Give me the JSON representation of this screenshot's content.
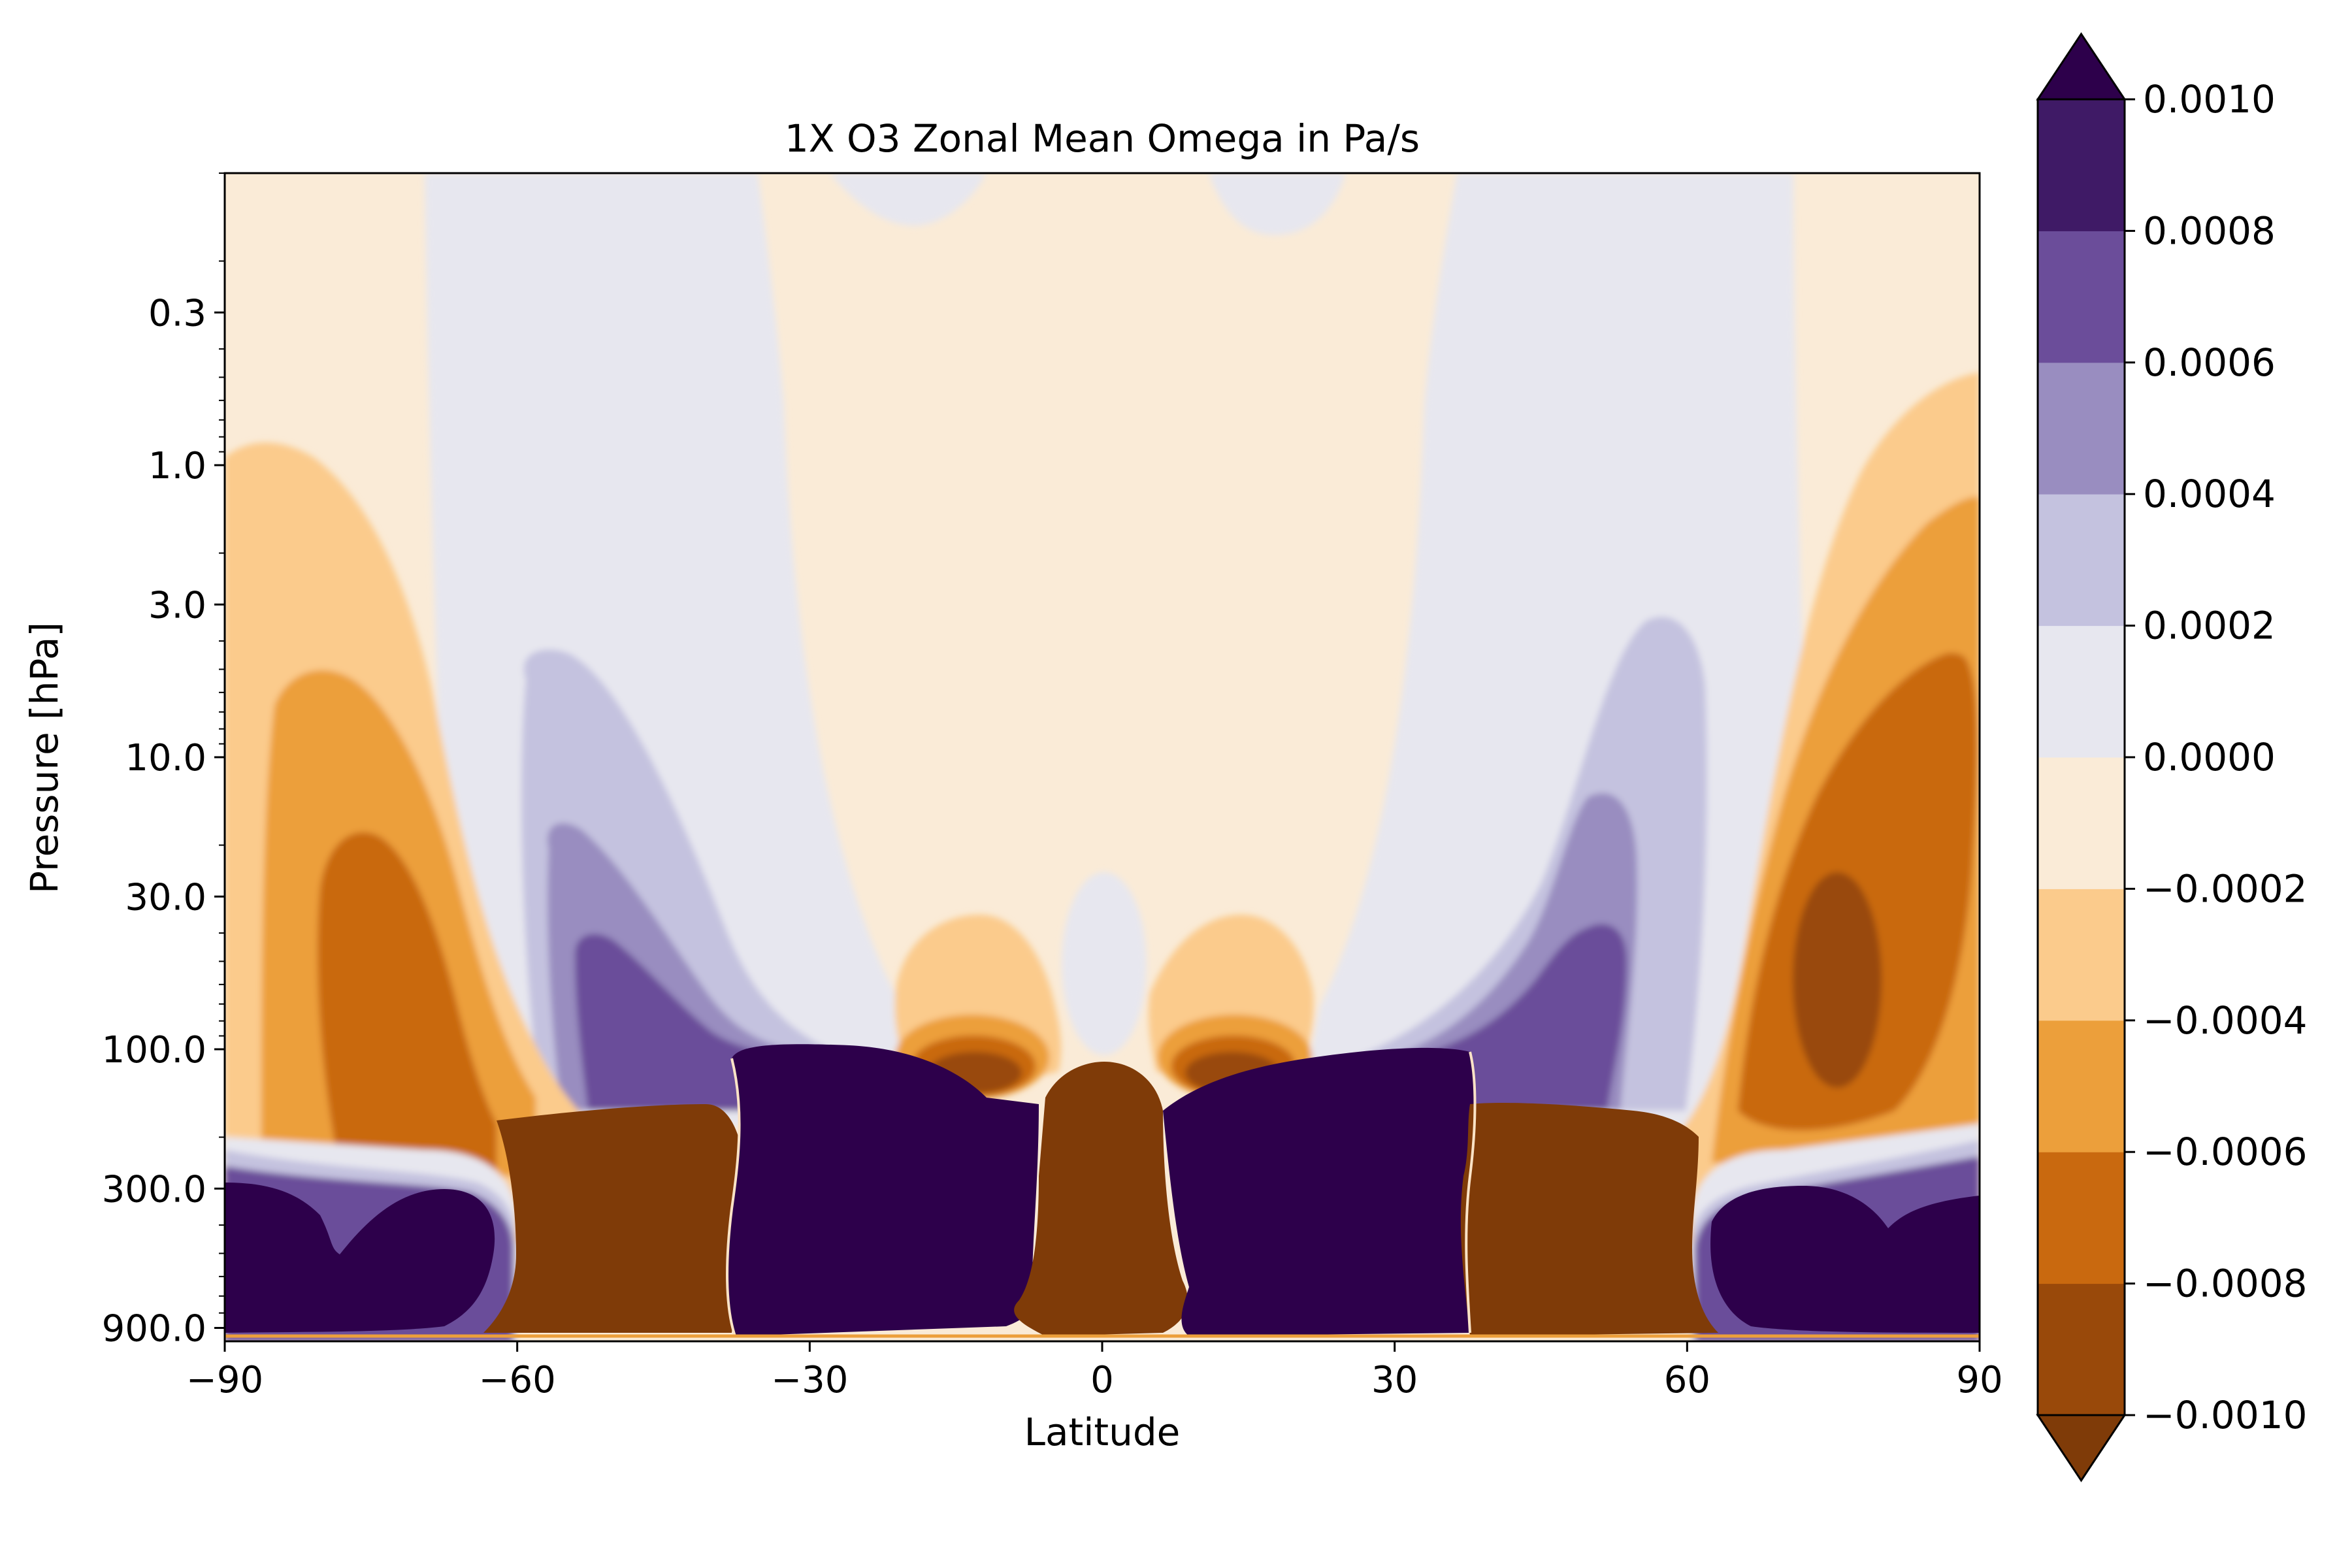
{
  "chart_data": {
    "type": "contourf",
    "title": "1X O3 Zonal Mean Omega in Pa/s",
    "xlabel": "Latitude",
    "ylabel": "Pressure [hPa]",
    "x_ticks": [
      -90,
      -60,
      -30,
      0,
      30,
      60,
      90
    ],
    "x_tick_labels": [
      "−90",
      "−60",
      "−30",
      "0",
      "30",
      "60",
      "90"
    ],
    "y_scale": "log",
    "y_inverted": true,
    "xlim": [
      -90,
      90
    ],
    "ylim": [
      1000.0,
      0.1
    ],
    "y_ticks": [
      0.3,
      1.0,
      3.0,
      10.0,
      30.0,
      100.0,
      300.0,
      900.0
    ],
    "y_tick_labels": [
      "0.3",
      "1.0",
      "3.0",
      "10.0",
      "30.0",
      "100.0",
      "300.0",
      "900.0"
    ],
    "colorbar": {
      "levels": [
        -0.001,
        -0.0008,
        -0.0006,
        -0.0004,
        -0.0002,
        0.0,
        0.0002,
        0.0004,
        0.0006,
        0.0008,
        0.001
      ],
      "tick_labels": [
        "−0.0010",
        "−0.0008",
        "−0.0006",
        "−0.0004",
        "−0.0002",
        "0.0000",
        "0.0002",
        "0.0004",
        "0.0006",
        "0.0008",
        "0.0010"
      ],
      "colors": [
        "#7f3b08",
        "#99490a",
        "#c9690f",
        "#ec9f3b",
        "#fbcb8c",
        "#faebd7",
        "#e7e7ef",
        "#c4c2df",
        "#998dc0",
        "#6b4d9a",
        "#3f1a66",
        "#2d004b"
      ],
      "extend": "both"
    },
    "regions": {
      "upper_stratosphere_equator": "slightly negative (-0.0002 to 0)",
      "stratosphere_mid_latitudes": "positive (0 to 0.0004)",
      "polar_stratosphere_north": "negative, minimum about -0.001 near 75N, 40-60 hPa",
      "polar_stratosphere_south": "negative, minimum about -0.0008 near 75S, 40-100 hPa",
      "troposphere_tropics_equator": "below -0.001 (strong ascent)",
      "troposphere_subtropics_15_38": "above 0.001 (strong descent)",
      "troposphere_midlatitudes_40_60": "below -0.001",
      "troposphere_polar_65_90": "above 0.001"
    }
  }
}
